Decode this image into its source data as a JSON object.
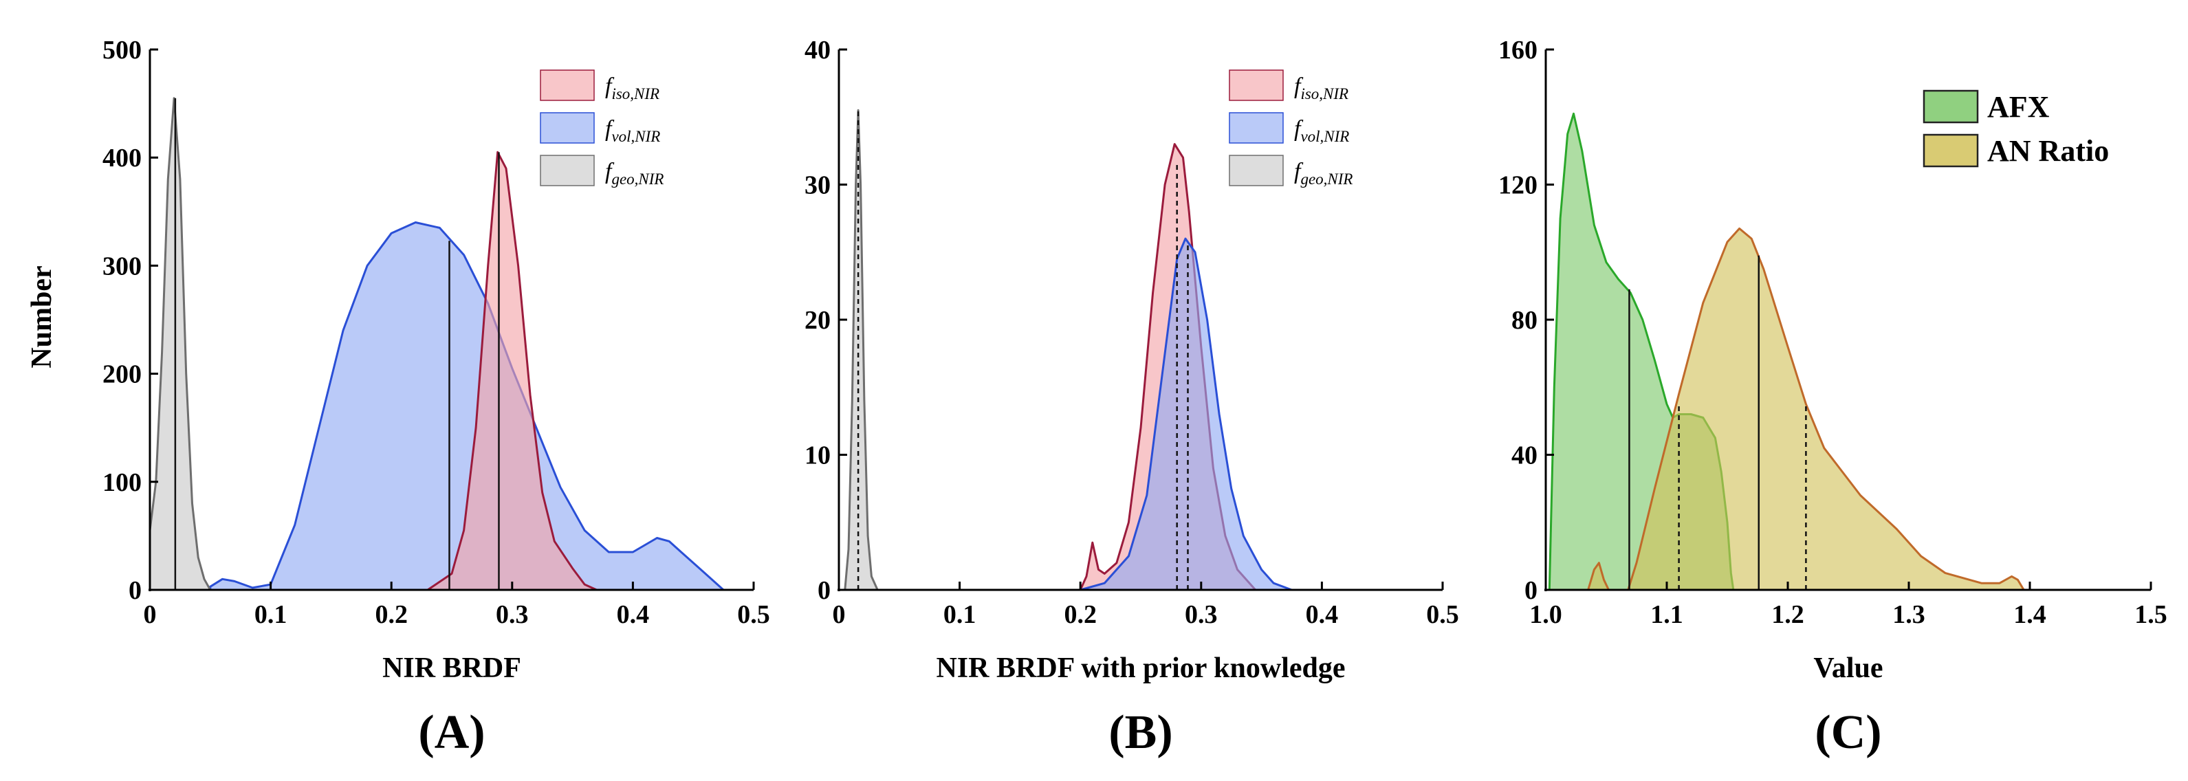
{
  "ylabel": "Number",
  "colors": {
    "iso": "#f4a3a8",
    "iso_line": "#9b1b3c",
    "vol": "#8fa9f4",
    "vol_line": "#2a4fd6",
    "geo": "#c8c8c8",
    "geo_line": "#6e6e6e",
    "afx": "#7cc86a",
    "afx_line": "#2aa82a",
    "an": "#d2c25a",
    "an_line": "#c06a2a"
  },
  "chart_data": [
    {
      "type": "area",
      "panel_label": "(A)",
      "xlabel": "NIR BRDF",
      "ylabel": "Number",
      "xlim": [
        0,
        0.5
      ],
      "ylim": [
        0,
        500
      ],
      "xticks": [
        0,
        0.1,
        0.2,
        0.3,
        0.4,
        0.5
      ],
      "xtick_labels": [
        "0",
        "0.1",
        "0.2",
        "0.3",
        "0.4",
        "0.5"
      ],
      "yticks": [
        0,
        100,
        200,
        300,
        400,
        500
      ],
      "ytick_labels": [
        "0",
        "100",
        "200",
        "300",
        "400",
        "500"
      ],
      "legend": [
        {
          "key": "iso",
          "base": "f",
          "sub": "iso,NIR"
        },
        {
          "key": "vol",
          "base": "f",
          "sub": "vol,NIR"
        },
        {
          "key": "geo",
          "base": "f",
          "sub": "geo,NIR"
        }
      ],
      "series": [
        {
          "name": "f_vol,NIR",
          "key": "vol",
          "points": [
            [
              0.05,
              3
            ],
            [
              0.06,
              10
            ],
            [
              0.07,
              8
            ],
            [
              0.085,
              2
            ],
            [
              0.1,
              5
            ],
            [
              0.12,
              60
            ],
            [
              0.14,
              150
            ],
            [
              0.16,
              240
            ],
            [
              0.18,
              300
            ],
            [
              0.2,
              330
            ],
            [
              0.22,
              340
            ],
            [
              0.24,
              335
            ],
            [
              0.26,
              310
            ],
            [
              0.28,
              265
            ],
            [
              0.3,
              205
            ],
            [
              0.32,
              150
            ],
            [
              0.34,
              95
            ],
            [
              0.36,
              55
            ],
            [
              0.38,
              35
            ],
            [
              0.4,
              35
            ],
            [
              0.42,
              48
            ],
            [
              0.43,
              45
            ],
            [
              0.44,
              35
            ],
            [
              0.46,
              15
            ],
            [
              0.475,
              0
            ]
          ]
        },
        {
          "name": "f_iso,NIR",
          "key": "iso",
          "points": [
            [
              0.205,
              0
            ],
            [
              0.23,
              0
            ],
            [
              0.25,
              15
            ],
            [
              0.26,
              55
            ],
            [
              0.27,
              150
            ],
            [
              0.28,
              300
            ],
            [
              0.288,
              405
            ],
            [
              0.295,
              390
            ],
            [
              0.305,
              300
            ],
            [
              0.315,
              180
            ],
            [
              0.325,
              90
            ],
            [
              0.335,
              45
            ],
            [
              0.35,
              20
            ],
            [
              0.36,
              5
            ],
            [
              0.37,
              0
            ]
          ]
        },
        {
          "name": "f_geo,NIR",
          "key": "geo",
          "points": [
            [
              0.0,
              55
            ],
            [
              0.005,
              100
            ],
            [
              0.01,
              220
            ],
            [
              0.015,
              380
            ],
            [
              0.02,
              455
            ],
            [
              0.025,
              380
            ],
            [
              0.03,
              200
            ],
            [
              0.035,
              80
            ],
            [
              0.04,
              30
            ],
            [
              0.045,
              10
            ],
            [
              0.05,
              0
            ]
          ]
        }
      ],
      "vlines": [
        {
          "x": 0.021,
          "y": 455,
          "style": "solid"
        },
        {
          "x": 0.248,
          "y": 323,
          "style": "solid"
        },
        {
          "x": 0.289,
          "y": 405,
          "style": "solid"
        }
      ]
    },
    {
      "type": "area",
      "panel_label": "(B)",
      "xlabel": "NIR BRDF with prior knowledge",
      "xlim": [
        0,
        0.5
      ],
      "ylim": [
        0,
        40
      ],
      "xticks": [
        0,
        0.1,
        0.2,
        0.3,
        0.4,
        0.5
      ],
      "xtick_labels": [
        "0",
        "0.1",
        "0.2",
        "0.3",
        "0.4",
        "0.5"
      ],
      "yticks": [
        0,
        10,
        20,
        30,
        40
      ],
      "ytick_labels": [
        "0",
        "10",
        "20",
        "30",
        "40"
      ],
      "legend": [
        {
          "key": "iso",
          "base": "f",
          "sub": "iso,NIR"
        },
        {
          "key": "vol",
          "base": "f",
          "sub": "vol,NIR"
        },
        {
          "key": "geo",
          "base": "f",
          "sub": "geo,NIR"
        }
      ],
      "series": [
        {
          "name": "f_iso,NIR",
          "key": "iso",
          "points": [
            [
              0.2,
              0
            ],
            [
              0.205,
              1
            ],
            [
              0.21,
              3.5
            ],
            [
              0.215,
              1.5
            ],
            [
              0.22,
              1.2
            ],
            [
              0.23,
              2
            ],
            [
              0.24,
              5
            ],
            [
              0.25,
              12
            ],
            [
              0.26,
              22
            ],
            [
              0.27,
              30
            ],
            [
              0.278,
              33
            ],
            [
              0.285,
              32
            ],
            [
              0.29,
              28
            ],
            [
              0.3,
              18
            ],
            [
              0.31,
              9
            ],
            [
              0.32,
              4
            ],
            [
              0.33,
              1.5
            ],
            [
              0.345,
              0
            ]
          ]
        },
        {
          "name": "f_vol,NIR",
          "key": "vol",
          "points": [
            [
              0.2,
              0
            ],
            [
              0.22,
              0.5
            ],
            [
              0.24,
              2.5
            ],
            [
              0.255,
              7
            ],
            [
              0.265,
              14
            ],
            [
              0.275,
              21
            ],
            [
              0.28,
              24.5
            ],
            [
              0.287,
              26
            ],
            [
              0.295,
              25
            ],
            [
              0.305,
              20
            ],
            [
              0.315,
              13
            ],
            [
              0.325,
              7.5
            ],
            [
              0.335,
              4
            ],
            [
              0.35,
              1.5
            ],
            [
              0.36,
              0.5
            ],
            [
              0.375,
              0
            ]
          ]
        },
        {
          "name": "f_geo,NIR",
          "key": "geo",
          "points": [
            [
              0.005,
              0
            ],
            [
              0.008,
              3
            ],
            [
              0.011,
              14
            ],
            [
              0.014,
              30
            ],
            [
              0.016,
              35.5
            ],
            [
              0.018,
              30
            ],
            [
              0.021,
              14
            ],
            [
              0.024,
              4
            ],
            [
              0.027,
              1
            ],
            [
              0.032,
              0
            ]
          ]
        }
      ],
      "vlines": [
        {
          "x": 0.016,
          "y": 35.5,
          "style": "dashed"
        },
        {
          "x": 0.28,
          "y": 31.5,
          "style": "dashed"
        },
        {
          "x": 0.289,
          "y": 25.8,
          "style": "dashed"
        }
      ]
    },
    {
      "type": "area",
      "panel_label": "(C)",
      "xlabel": "Value",
      "xlim": [
        1.0,
        1.5
      ],
      "ylim": [
        0,
        160
      ],
      "xticks": [
        1.0,
        1.1,
        1.2,
        1.3,
        1.4,
        1.5
      ],
      "xtick_labels": [
        "1.0",
        "1.1",
        "1.2",
        "1.3",
        "1.4",
        "1.5"
      ],
      "yticks": [
        0,
        40,
        80,
        120,
        160
      ],
      "ytick_labels": [
        "0",
        "40",
        "80",
        "120",
        "160"
      ],
      "legend_bold": [
        {
          "key": "afx",
          "label": "AFX"
        },
        {
          "key": "an",
          "label": "AN Ratio"
        }
      ],
      "series": [
        {
          "name": "AFX",
          "key": "afx",
          "points": [
            [
              1.003,
              0
            ],
            [
              1.007,
              60
            ],
            [
              1.012,
              110
            ],
            [
              1.018,
              135
            ],
            [
              1.023,
              141
            ],
            [
              1.03,
              130
            ],
            [
              1.04,
              108
            ],
            [
              1.05,
              97
            ],
            [
              1.06,
              92
            ],
            [
              1.07,
              88
            ],
            [
              1.08,
              80
            ],
            [
              1.09,
              68
            ],
            [
              1.1,
              55
            ],
            [
              1.105,
              51
            ],
            [
              1.11,
              52
            ],
            [
              1.12,
              52
            ],
            [
              1.13,
              51
            ],
            [
              1.14,
              45
            ],
            [
              1.145,
              35
            ],
            [
              1.15,
              20
            ],
            [
              1.153,
              5
            ],
            [
              1.155,
              0
            ]
          ]
        },
        {
          "name": "AN Ratio",
          "key": "an",
          "points": [
            [
              1.035,
              0
            ],
            [
              1.04,
              6
            ],
            [
              1.044,
              8
            ],
            [
              1.048,
              3
            ],
            [
              1.052,
              0
            ],
            [
              1.068,
              0
            ],
            [
              1.075,
              8
            ],
            [
              1.09,
              30
            ],
            [
              1.11,
              58
            ],
            [
              1.13,
              85
            ],
            [
              1.15,
              103
            ],
            [
              1.16,
              107
            ],
            [
              1.17,
              104
            ],
            [
              1.18,
              95
            ],
            [
              1.2,
              72
            ],
            [
              1.215,
              55
            ],
            [
              1.23,
              42
            ],
            [
              1.26,
              28
            ],
            [
              1.29,
              18
            ],
            [
              1.31,
              10
            ],
            [
              1.33,
              5
            ],
            [
              1.36,
              2
            ],
            [
              1.375,
              2
            ],
            [
              1.385,
              4
            ],
            [
              1.39,
              3
            ],
            [
              1.395,
              0
            ]
          ]
        }
      ],
      "vlines": [
        {
          "x": 1.069,
          "y": 89,
          "style": "solid"
        },
        {
          "x": 1.11,
          "y": 55,
          "style": "dashed"
        },
        {
          "x": 1.176,
          "y": 99,
          "style": "solid"
        },
        {
          "x": 1.215,
          "y": 55,
          "style": "dashed"
        }
      ]
    }
  ]
}
